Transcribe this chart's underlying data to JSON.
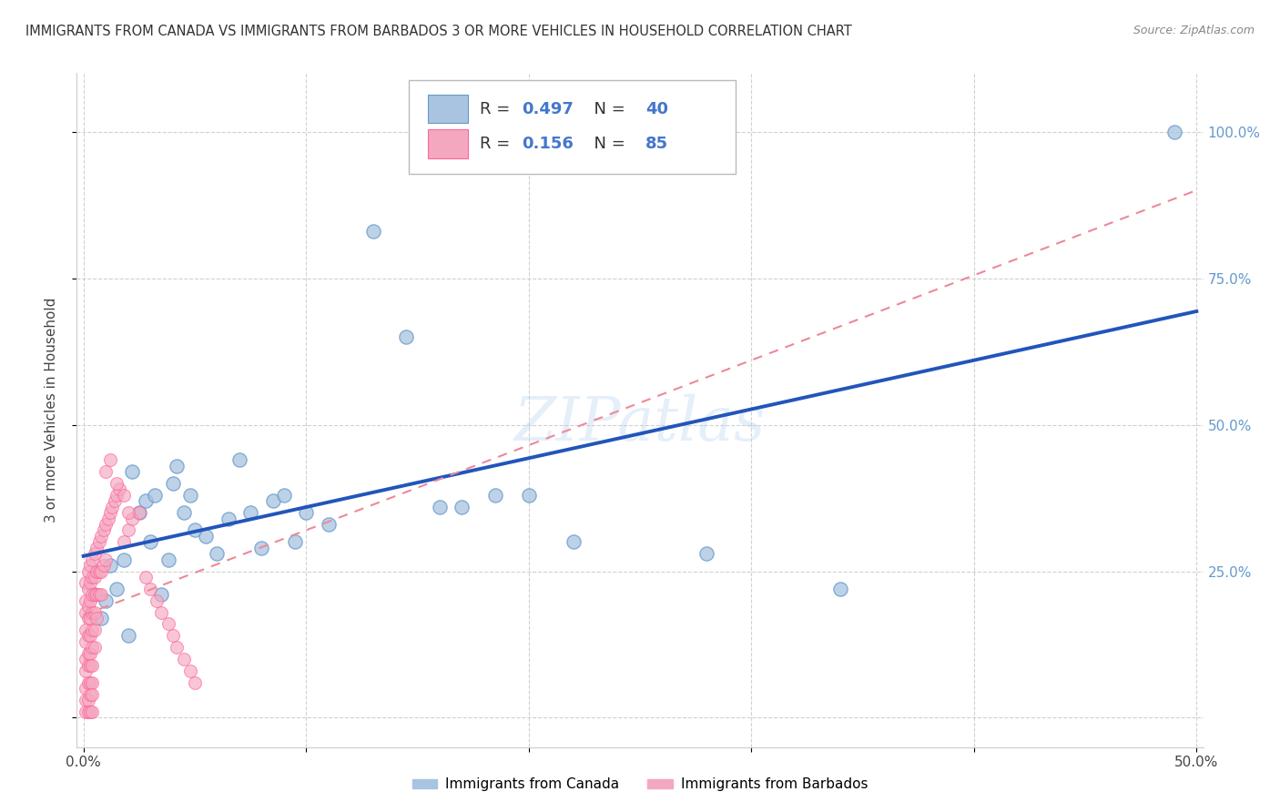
{
  "title": "IMMIGRANTS FROM CANADA VS IMMIGRANTS FROM BARBADOS 3 OR MORE VEHICLES IN HOUSEHOLD CORRELATION CHART",
  "source": "Source: ZipAtlas.com",
  "ylabel": "3 or more Vehicles in Household",
  "xlim": [
    -0.003,
    0.503
  ],
  "ylim": [
    -0.05,
    1.1
  ],
  "x_tick_positions": [
    0.0,
    0.1,
    0.2,
    0.3,
    0.4,
    0.5
  ],
  "x_tick_labels": [
    "0.0%",
    "",
    "",
    "",
    "",
    "50.0%"
  ],
  "y_tick_positions": [
    0.0,
    0.25,
    0.5,
    0.75,
    1.0
  ],
  "y_tick_labels_right": [
    "",
    "25.0%",
    "50.0%",
    "75.0%",
    "100.0%"
  ],
  "canada_R": 0.497,
  "canada_N": 40,
  "barbados_R": 0.156,
  "barbados_N": 85,
  "canada_color": "#A8C4E0",
  "barbados_color": "#F4A8C0",
  "canada_edge_color": "#6699CC",
  "barbados_edge_color": "#FF6699",
  "canada_line_color": "#2255BB",
  "barbados_line_color": "#EE8899",
  "legend_text_color": "#4477CC",
  "watermark": "ZIPatlas",
  "canada_x": [
    0.005,
    0.008,
    0.01,
    0.012,
    0.015,
    0.018,
    0.02,
    0.022,
    0.025,
    0.028,
    0.03,
    0.032,
    0.035,
    0.038,
    0.04,
    0.042,
    0.045,
    0.048,
    0.05,
    0.055,
    0.06,
    0.065,
    0.07,
    0.075,
    0.08,
    0.085,
    0.09,
    0.095,
    0.1,
    0.11,
    0.13,
    0.145,
    0.16,
    0.17,
    0.185,
    0.2,
    0.22,
    0.28,
    0.34,
    0.49
  ],
  "canada_y": [
    0.21,
    0.17,
    0.2,
    0.26,
    0.22,
    0.27,
    0.14,
    0.42,
    0.35,
    0.37,
    0.3,
    0.38,
    0.21,
    0.27,
    0.4,
    0.43,
    0.35,
    0.38,
    0.32,
    0.31,
    0.28,
    0.34,
    0.44,
    0.35,
    0.29,
    0.37,
    0.38,
    0.3,
    0.35,
    0.33,
    0.83,
    0.65,
    0.36,
    0.36,
    0.38,
    0.38,
    0.3,
    0.28,
    0.22,
    1.0
  ],
  "barbados_x": [
    0.001,
    0.001,
    0.001,
    0.001,
    0.001,
    0.001,
    0.001,
    0.001,
    0.001,
    0.001,
    0.002,
    0.002,
    0.002,
    0.002,
    0.002,
    0.002,
    0.002,
    0.002,
    0.002,
    0.002,
    0.003,
    0.003,
    0.003,
    0.003,
    0.003,
    0.003,
    0.003,
    0.003,
    0.003,
    0.003,
    0.004,
    0.004,
    0.004,
    0.004,
    0.004,
    0.004,
    0.004,
    0.004,
    0.004,
    0.004,
    0.005,
    0.005,
    0.005,
    0.005,
    0.005,
    0.005,
    0.006,
    0.006,
    0.006,
    0.006,
    0.007,
    0.007,
    0.007,
    0.008,
    0.008,
    0.008,
    0.009,
    0.009,
    0.01,
    0.01,
    0.011,
    0.012,
    0.013,
    0.014,
    0.015,
    0.016,
    0.018,
    0.02,
    0.022,
    0.025,
    0.028,
    0.03,
    0.033,
    0.035,
    0.038,
    0.04,
    0.042,
    0.045,
    0.048,
    0.05,
    0.01,
    0.012,
    0.015,
    0.018,
    0.02
  ],
  "barbados_y": [
    0.23,
    0.2,
    0.18,
    0.15,
    0.13,
    0.1,
    0.08,
    0.05,
    0.03,
    0.01,
    0.25,
    0.22,
    0.19,
    0.17,
    0.14,
    0.11,
    0.09,
    0.06,
    0.03,
    0.01,
    0.26,
    0.23,
    0.2,
    0.17,
    0.14,
    0.11,
    0.09,
    0.06,
    0.04,
    0.01,
    0.27,
    0.24,
    0.21,
    0.18,
    0.15,
    0.12,
    0.09,
    0.06,
    0.04,
    0.01,
    0.28,
    0.24,
    0.21,
    0.18,
    0.15,
    0.12,
    0.29,
    0.25,
    0.21,
    0.17,
    0.3,
    0.25,
    0.21,
    0.31,
    0.25,
    0.21,
    0.32,
    0.26,
    0.33,
    0.27,
    0.34,
    0.35,
    0.36,
    0.37,
    0.38,
    0.39,
    0.3,
    0.32,
    0.34,
    0.35,
    0.24,
    0.22,
    0.2,
    0.18,
    0.16,
    0.14,
    0.12,
    0.1,
    0.08,
    0.06,
    0.42,
    0.44,
    0.4,
    0.38,
    0.35
  ]
}
